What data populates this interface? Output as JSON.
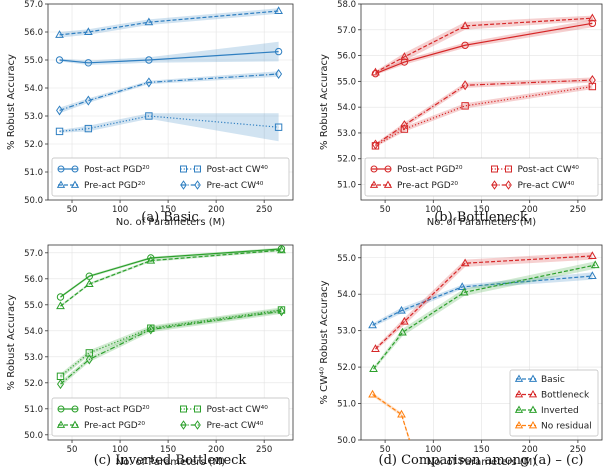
{
  "chart_data": [
    {
      "type": "line",
      "caption": "(a) Basic",
      "xlabel": "No. of Parameters (M)",
      "ylabel": "% Robust Accuracy",
      "xlim": [
        25,
        280
      ],
      "ylim": [
        50.0,
        57.0
      ],
      "xticks": [
        50,
        100,
        150,
        200,
        250
      ],
      "yticks": [
        "50.0",
        "51.0",
        "52.0",
        "53.0",
        "54.0",
        "55.0",
        "56.0",
        "57.0"
      ],
      "grid": true,
      "legend_placement": "lower-center",
      "legend_columns": 2,
      "series": [
        {
          "name": "Post-act PGD²⁰",
          "marker": "circle",
          "linestyle": "solid",
          "color": "#2f7fc1",
          "x": [
            37,
            67,
            130,
            265
          ],
          "y": [
            55.0,
            54.9,
            55.0,
            55.3
          ],
          "band": [
            0.05,
            0.08,
            0.1,
            0.35
          ]
        },
        {
          "name": "Pre-act PGD²⁰",
          "marker": "triangle",
          "linestyle": "dashed",
          "color": "#2f7fc1",
          "x": [
            37,
            67,
            130,
            265
          ],
          "y": [
            55.9,
            56.0,
            56.35,
            56.75
          ],
          "band": [
            0.1,
            0.1,
            0.1,
            0.1
          ]
        },
        {
          "name": "Post-act CW⁴⁰",
          "marker": "square",
          "linestyle": "dotted",
          "color": "#2f7fc1",
          "x": [
            37,
            67,
            130,
            265
          ],
          "y": [
            52.45,
            52.55,
            53.0,
            52.6
          ],
          "band": [
            0.05,
            0.1,
            0.1,
            0.5
          ]
        },
        {
          "name": "Pre-act CW⁴⁰",
          "marker": "diamond",
          "linestyle": "dashdot",
          "color": "#2f7fc1",
          "x": [
            37,
            67,
            130,
            265
          ],
          "y": [
            53.2,
            53.55,
            54.2,
            54.5
          ],
          "band": [
            0.1,
            0.08,
            0.06,
            0.1
          ]
        }
      ]
    },
    {
      "type": "line",
      "caption": "(b) Bottleneck",
      "xlabel": "No. of Parameters (M)",
      "ylabel": "% Robust Accuracy",
      "xlim": [
        25,
        275
      ],
      "ylim": [
        50.4,
        58.0
      ],
      "xticks": [
        50,
        100,
        150,
        200,
        250
      ],
      "yticks": [
        "51.0",
        "52.0",
        "53.0",
        "54.0",
        "55.0",
        "56.0",
        "57.0",
        "58.0"
      ],
      "grid": true,
      "legend_placement": "lower-center",
      "legend_columns": 2,
      "series": [
        {
          "name": "Post-act PGD²⁰",
          "marker": "circle",
          "linestyle": "solid",
          "color": "#d62728",
          "x": [
            40,
            70,
            133,
            265
          ],
          "y": [
            55.3,
            55.75,
            56.4,
            57.25
          ],
          "band": [
            0.05,
            0.1,
            0.1,
            0.15
          ]
        },
        {
          "name": "Pre-act PGD²⁰",
          "marker": "triangle",
          "linestyle": "dashed",
          "color": "#d62728",
          "x": [
            40,
            70,
            133,
            265
          ],
          "y": [
            55.35,
            55.95,
            57.15,
            57.45
          ],
          "band": [
            0.05,
            0.15,
            0.15,
            0.1
          ]
        },
        {
          "name": "Post-act CW⁴⁰",
          "marker": "square",
          "linestyle": "dotted",
          "color": "#d62728",
          "x": [
            40,
            70,
            133,
            265
          ],
          "y": [
            52.5,
            53.15,
            54.05,
            54.8
          ],
          "band": [
            0.05,
            0.1,
            0.1,
            0.1
          ]
        },
        {
          "name": "Pre-act CW⁴⁰",
          "marker": "diamond",
          "linestyle": "dashdot",
          "color": "#d62728",
          "x": [
            40,
            70,
            133,
            265
          ],
          "y": [
            52.55,
            53.3,
            54.85,
            55.05
          ],
          "band": [
            0.05,
            0.1,
            0.1,
            0.1
          ]
        }
      ]
    },
    {
      "type": "line",
      "caption": "(c) Inverted Bottleneck",
      "xlabel": "No. of Parameters (M)",
      "ylabel": "% Robust Accuracy",
      "xlim": [
        25,
        280
      ],
      "ylim": [
        49.8,
        57.3
      ],
      "xticks": [
        50,
        100,
        150,
        200,
        250
      ],
      "yticks": [
        "50.0",
        "51.0",
        "52.0",
        "53.0",
        "54.0",
        "55.0",
        "56.0",
        "57.0"
      ],
      "grid": true,
      "legend_placement": "lower-center",
      "legend_columns": 2,
      "series": [
        {
          "name": "Post-act PGD²⁰",
          "marker": "circle",
          "linestyle": "solid",
          "color": "#2ca02c",
          "x": [
            38,
            68,
            132,
            268
          ],
          "y": [
            55.3,
            56.1,
            56.8,
            57.15
          ],
          "band": [
            0.05,
            0.05,
            0.05,
            0.05
          ]
        },
        {
          "name": "Pre-act PGD²⁰",
          "marker": "triangle",
          "linestyle": "dashed",
          "color": "#2ca02c",
          "x": [
            38,
            68,
            132,
            268
          ],
          "y": [
            54.95,
            55.8,
            56.7,
            57.1
          ],
          "band": [
            0.05,
            0.05,
            0.05,
            0.05
          ]
        },
        {
          "name": "Post-act CW⁴⁰",
          "marker": "square",
          "linestyle": "dotted",
          "color": "#2ca02c",
          "x": [
            38,
            68,
            132,
            268
          ],
          "y": [
            52.25,
            53.15,
            54.1,
            54.8
          ],
          "band": [
            0.1,
            0.1,
            0.1,
            0.1
          ]
        },
        {
          "name": "Pre-act CW⁴⁰",
          "marker": "diamond",
          "linestyle": "dashdot",
          "color": "#2ca02c",
          "x": [
            38,
            68,
            132,
            268
          ],
          "y": [
            51.95,
            52.9,
            54.05,
            54.75
          ],
          "band": [
            0.1,
            0.1,
            0.1,
            0.1
          ]
        }
      ]
    },
    {
      "type": "line",
      "caption": "(d) Comparison among (a) – (c)",
      "xlabel": "No. of Parameters (M)",
      "ylabel": "% CW⁴⁰ Robust Accuracy",
      "xlim": [
        25,
        275
      ],
      "ylim": [
        50.0,
        55.35
      ],
      "xticks": [
        50,
        100,
        150,
        200,
        250
      ],
      "yticks": [
        "50.0",
        "51.0",
        "52.0",
        "53.0",
        "54.0",
        "55.0"
      ],
      "grid": true,
      "legend_placement": "lower-right",
      "legend_columns": 1,
      "series": [
        {
          "name": "Basic",
          "marker": "triangle",
          "linestyle": "dashed",
          "color": "#2f7fc1",
          "x": [
            37,
            67,
            130,
            265
          ],
          "y": [
            53.15,
            53.55,
            54.2,
            54.5
          ],
          "band": [
            0.05,
            0.08,
            0.06,
            0.1
          ]
        },
        {
          "name": "Bottleneck",
          "marker": "triangle",
          "linestyle": "dashed",
          "color": "#d62728",
          "x": [
            40,
            70,
            133,
            265
          ],
          "y": [
            52.5,
            53.25,
            54.85,
            55.05
          ],
          "band": [
            0.05,
            0.1,
            0.1,
            0.1
          ]
        },
        {
          "name": "Inverted",
          "marker": "triangle",
          "linestyle": "dashed",
          "color": "#2ca02c",
          "x": [
            38,
            68,
            132,
            268
          ],
          "y": [
            51.95,
            52.95,
            54.05,
            54.8
          ],
          "band": [
            0.05,
            0.1,
            0.1,
            0.1
          ]
        },
        {
          "name": "No residual",
          "marker": "triangle",
          "linestyle": "dashed",
          "color": "#ff7f0e",
          "x": [
            37,
            67,
            80
          ],
          "y": [
            51.25,
            50.7,
            49.6
          ],
          "band": [
            0.05,
            0.05,
            0.1
          ]
        }
      ]
    }
  ]
}
